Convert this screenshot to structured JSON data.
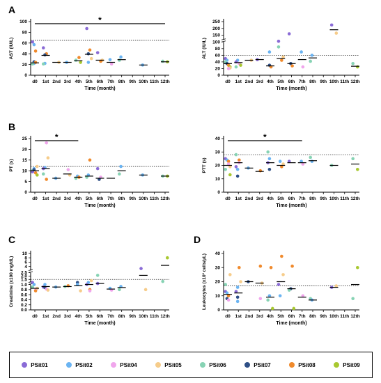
{
  "legend": [
    {
      "name": "PSit01",
      "color": "#8a6bd6"
    },
    {
      "name": "PSit02",
      "color": "#6bb4f2"
    },
    {
      "name": "PSit04",
      "color": "#f0a6ec"
    },
    {
      "name": "PSit05",
      "color": "#f6cc8a"
    },
    {
      "name": "PSit06",
      "color": "#87d3b4"
    },
    {
      "name": "PSit07",
      "color": "#2e4f86"
    },
    {
      "name": "PSit08",
      "color": "#f08a2c"
    },
    {
      "name": "PSit09",
      "color": "#a8c830"
    }
  ],
  "chart_data": [
    {
      "type": "scatter",
      "panel": "A",
      "ylabel": "AST (IU/L)",
      "xlabel": "Time (month)",
      "categories": [
        "d0",
        "1st",
        "2nd",
        "3rd",
        "4th",
        "5th",
        "6th",
        "7th",
        "8th",
        "9th",
        "10th",
        "11th",
        "12th"
      ],
      "yticks": [
        "0",
        "20",
        "40",
        "60",
        "80",
        "100"
      ],
      "ylim": [
        0,
        100
      ],
      "ref": 65,
      "sig": {
        "from": "d0",
        "to": "12th",
        "label": "*"
      },
      "medians": [
        [
          0,
          23
        ],
        [
          1,
          37
        ],
        [
          2,
          24
        ],
        [
          3,
          24
        ],
        [
          4,
          27
        ],
        [
          5,
          39
        ],
        [
          6,
          28
        ],
        [
          7,
          24
        ],
        [
          8,
          29
        ],
        [
          10,
          19
        ],
        [
          12,
          25
        ]
      ],
      "points": [
        [
          0,
          62,
          0
        ],
        [
          0,
          57,
          1
        ],
        [
          0,
          45,
          6
        ],
        [
          0,
          25,
          5
        ],
        [
          0,
          22,
          1
        ],
        [
          0,
          24,
          6
        ],
        [
          0,
          21,
          4
        ],
        [
          1,
          51,
          0
        ],
        [
          1,
          40,
          6
        ],
        [
          1,
          38,
          5
        ],
        [
          1,
          22,
          1
        ],
        [
          1,
          21,
          4
        ],
        [
          2,
          24,
          3
        ],
        [
          3,
          24,
          1
        ],
        [
          4,
          33,
          6
        ],
        [
          4,
          28,
          4
        ],
        [
          4,
          24,
          7
        ],
        [
          5,
          87,
          0
        ],
        [
          5,
          47,
          6
        ],
        [
          5,
          40,
          5
        ],
        [
          5,
          31,
          3
        ],
        [
          5,
          24,
          1
        ],
        [
          6,
          42,
          0
        ],
        [
          6,
          28,
          3
        ],
        [
          6,
          26,
          6
        ],
        [
          7,
          29,
          1
        ],
        [
          7,
          21,
          2
        ],
        [
          8,
          34,
          1
        ],
        [
          8,
          28,
          4
        ],
        [
          10,
          19,
          1
        ],
        [
          12,
          25,
          7
        ],
        [
          12,
          26,
          4
        ]
      ]
    },
    {
      "type": "scatter",
      "panel": "A",
      "ylabel": "ALT (IU/L)",
      "xlabel": "Time (month)",
      "categories": [
        "d0",
        "1st",
        "2nd",
        "3rd",
        "4th",
        "5th",
        "6th",
        "7th",
        "8th",
        "9th",
        "10th",
        "11th",
        "12th"
      ],
      "yticks": [
        "0",
        "20",
        "40",
        "60",
        "80",
        "100",
        "150",
        "200",
        "250"
      ],
      "ylim": [
        0,
        250
      ],
      "ref": 60,
      "medians": [
        [
          0,
          35
        ],
        [
          1,
          38
        ],
        [
          2,
          45
        ],
        [
          3,
          47
        ],
        [
          4,
          28
        ],
        [
          5,
          50
        ],
        [
          6,
          35
        ],
        [
          7,
          47
        ],
        [
          8,
          52
        ],
        [
          10,
          190
        ],
        [
          12,
          27
        ]
      ],
      "points": [
        [
          0,
          50,
          0
        ],
        [
          0,
          45,
          1
        ],
        [
          0,
          40,
          4
        ],
        [
          0,
          35,
          5
        ],
        [
          0,
          30,
          6
        ],
        [
          0,
          25,
          7
        ],
        [
          0,
          22,
          3
        ],
        [
          0,
          20,
          2
        ],
        [
          1,
          45,
          1
        ],
        [
          1,
          40,
          0
        ],
        [
          1,
          35,
          2
        ],
        [
          1,
          30,
          7
        ],
        [
          1,
          25,
          4
        ],
        [
          2,
          45,
          3
        ],
        [
          3,
          47,
          0
        ],
        [
          4,
          70,
          1
        ],
        [
          4,
          30,
          5
        ],
        [
          4,
          25,
          6
        ],
        [
          5,
          105,
          0
        ],
        [
          5,
          85,
          4
        ],
        [
          5,
          55,
          3
        ],
        [
          5,
          45,
          6
        ],
        [
          6,
          160,
          0
        ],
        [
          6,
          35,
          5
        ],
        [
          6,
          28,
          6
        ],
        [
          7,
          70,
          1
        ],
        [
          7,
          25,
          2
        ],
        [
          8,
          60,
          1
        ],
        [
          8,
          42,
          4
        ],
        [
          10,
          225,
          0
        ],
        [
          10,
          165,
          3
        ],
        [
          12,
          35,
          4
        ],
        [
          12,
          25,
          7
        ]
      ]
    },
    {
      "type": "scatter",
      "panel": "B",
      "ylabel": "PT (s)",
      "xlabel": "Time (month)",
      "categories": [
        "d0",
        "1st",
        "2nd",
        "3rd",
        "4th",
        "5th",
        "6th",
        "7th",
        "8th",
        "9th",
        "10th",
        "11th",
        "12th"
      ],
      "yticks": [
        "0",
        "5",
        "10",
        "15",
        "20",
        "25"
      ],
      "ylim": [
        0,
        25
      ],
      "ref": 12,
      "sig": {
        "from": "d0",
        "to": "4th",
        "label": "*"
      },
      "medians": [
        [
          0,
          10
        ],
        [
          1,
          11
        ],
        [
          2,
          6.5
        ],
        [
          3,
          8.5
        ],
        [
          4,
          7
        ],
        [
          5,
          7.5
        ],
        [
          6,
          6.5
        ],
        [
          7,
          6.5
        ],
        [
          8,
          10
        ],
        [
          10,
          8
        ],
        [
          12,
          7.5
        ]
      ],
      "points": [
        [
          0,
          12,
          3
        ],
        [
          0,
          11,
          1
        ],
        [
          0,
          10,
          4
        ],
        [
          0,
          9.5,
          0
        ],
        [
          0,
          9,
          6
        ],
        [
          0,
          8,
          7
        ],
        [
          0,
          10.5,
          5
        ],
        [
          1,
          23,
          2
        ],
        [
          1,
          16,
          3
        ],
        [
          1,
          11.5,
          1
        ],
        [
          1,
          11,
          0
        ],
        [
          1,
          8.5,
          4
        ],
        [
          1,
          6,
          6
        ],
        [
          2,
          6.5,
          1
        ],
        [
          3,
          10.5,
          2
        ],
        [
          3,
          8,
          3
        ],
        [
          4,
          7.5,
          1
        ],
        [
          4,
          7,
          6
        ],
        [
          4,
          6.5,
          4
        ],
        [
          5,
          15,
          6
        ],
        [
          5,
          8,
          1
        ],
        [
          5,
          7,
          4
        ],
        [
          6,
          11,
          0
        ],
        [
          6,
          7,
          2
        ],
        [
          6,
          6,
          5
        ],
        [
          8,
          12,
          1
        ],
        [
          8,
          8.5,
          4
        ],
        [
          10,
          8,
          1
        ],
        [
          12,
          7.5,
          4
        ],
        [
          12,
          7.5,
          7
        ]
      ]
    },
    {
      "type": "scatter",
      "panel": "B",
      "ylabel": "PTT (s)",
      "xlabel": "Time (month)",
      "categories": [
        "d0",
        "1st",
        "2nd",
        "3rd",
        "4th",
        "5th",
        "6th",
        "7th",
        "8th",
        "9th",
        "10th",
        "11th",
        "12th"
      ],
      "yticks": [
        "0",
        "10",
        "20",
        "30",
        "40"
      ],
      "ylim": [
        0,
        40
      ],
      "ref": 28,
      "sig": {
        "from": "d0",
        "to": "7th",
        "label": "*"
      },
      "medians": [
        [
          0,
          20
        ],
        [
          1,
          22
        ],
        [
          2,
          18
        ],
        [
          3,
          15.5
        ],
        [
          4,
          22
        ],
        [
          5,
          20
        ],
        [
          6,
          22
        ],
        [
          7,
          22
        ],
        [
          8,
          23.5
        ],
        [
          10,
          20
        ],
        [
          12,
          21
        ]
      ],
      "points": [
        [
          0,
          25,
          0
        ],
        [
          0,
          24,
          1
        ],
        [
          0,
          23,
          6
        ],
        [
          0,
          21,
          2
        ],
        [
          0,
          19,
          3
        ],
        [
          0,
          17,
          4
        ],
        [
          0,
          13,
          7
        ],
        [
          1,
          28,
          4
        ],
        [
          1,
          24,
          6
        ],
        [
          1,
          22,
          2
        ],
        [
          1,
          19,
          0
        ],
        [
          1,
          17,
          1
        ],
        [
          1,
          12,
          5
        ],
        [
          2,
          18,
          1
        ],
        [
          3,
          16,
          6
        ],
        [
          4,
          30,
          4
        ],
        [
          4,
          25,
          1
        ],
        [
          4,
          22,
          0
        ],
        [
          4,
          17,
          5
        ],
        [
          5,
          23,
          1
        ],
        [
          5,
          21,
          3
        ],
        [
          5,
          19,
          6
        ],
        [
          6,
          23,
          0
        ],
        [
          7,
          23,
          1
        ],
        [
          7,
          21,
          2
        ],
        [
          8,
          26,
          4
        ],
        [
          8,
          23,
          1
        ],
        [
          10,
          20,
          4
        ],
        [
          12,
          25,
          4
        ],
        [
          12,
          17,
          7
        ]
      ]
    },
    {
      "type": "scatter",
      "panel": "C",
      "ylabel": "Creatinine (x100 mg/dL)",
      "xlabel": "Time (month)",
      "categories": [
        "d0",
        "1st",
        "2nd",
        "3rd",
        "4th",
        "5th",
        "6th",
        "7th",
        "8th",
        "9th",
        "10th",
        "11th",
        "12th"
      ],
      "yticks": [
        "0.0",
        "0.2",
        "0.4",
        "0.6",
        "0.8",
        "1.0",
        "1.5",
        "2.0",
        "2.5",
        "4",
        "6",
        "8",
        "10"
      ],
      "ylim": [
        0,
        10
      ],
      "ref": 1.5,
      "medians": [
        [
          0,
          0.85
        ],
        [
          1,
          0.92
        ],
        [
          2,
          0.9
        ],
        [
          3,
          0.92
        ],
        [
          4,
          0.95
        ],
        [
          5,
          1.0
        ],
        [
          6,
          1.1
        ],
        [
          7,
          0.82
        ],
        [
          8,
          0.88
        ],
        [
          10,
          2.1
        ],
        [
          12,
          4.5
        ]
      ],
      "points": [
        [
          0,
          1.2,
          0
        ],
        [
          0,
          1.0,
          1
        ],
        [
          0,
          0.9,
          4
        ],
        [
          0,
          0.85,
          3
        ],
        [
          0,
          0.78,
          2
        ],
        [
          0,
          0.75,
          6
        ],
        [
          1,
          1.0,
          1
        ],
        [
          1,
          0.9,
          0
        ],
        [
          1,
          0.88,
          5
        ],
        [
          1,
          0.82,
          2
        ],
        [
          1,
          0.78,
          3
        ],
        [
          2,
          0.9,
          1
        ],
        [
          3,
          0.95,
          6
        ],
        [
          3,
          0.92,
          4
        ],
        [
          4,
          1.2,
          5
        ],
        [
          4,
          1.0,
          1
        ],
        [
          4,
          0.75,
          3
        ],
        [
          5,
          1.38,
          3
        ],
        [
          5,
          1.2,
          1
        ],
        [
          5,
          1.0,
          0
        ],
        [
          5,
          0.8,
          6
        ],
        [
          5,
          0.75,
          2
        ],
        [
          6,
          2.1,
          4
        ],
        [
          6,
          1.1,
          0
        ],
        [
          7,
          0.85,
          1
        ],
        [
          7,
          0.78,
          2
        ],
        [
          8,
          0.92,
          1
        ],
        [
          8,
          0.8,
          4
        ],
        [
          10,
          3.5,
          0
        ],
        [
          10,
          0.8,
          3
        ],
        [
          12,
          8,
          7
        ],
        [
          12,
          1.3,
          4
        ]
      ]
    },
    {
      "type": "scatter",
      "panel": "D",
      "ylabel": "Leukocytes (x10³ cells/μL)",
      "xlabel": "Time (month)",
      "categories": [
        "d0",
        "1st",
        "2nd",
        "3rd",
        "4th",
        "5th",
        "6th",
        "7th",
        "8th",
        "9th",
        "10th",
        "11th",
        "12th"
      ],
      "yticks": [
        "0",
        "10",
        "20",
        "30",
        "40"
      ],
      "ylim": [
        0,
        40
      ],
      "ref": 17,
      "medians": [
        [
          0,
          11
        ],
        [
          1,
          12
        ],
        [
          2,
          20
        ],
        [
          3,
          19
        ],
        [
          4,
          9
        ],
        [
          5,
          20
        ],
        [
          6,
          15
        ],
        [
          7,
          9
        ],
        [
          8,
          7
        ],
        [
          10,
          16
        ],
        [
          12,
          18
        ]
      ],
      "points": [
        [
          0,
          25,
          3
        ],
        [
          0,
          18,
          4
        ],
        [
          0,
          13,
          0
        ],
        [
          0,
          12,
          1
        ],
        [
          0,
          10,
          6
        ],
        [
          0,
          8,
          5
        ],
        [
          0,
          7,
          2
        ],
        [
          1,
          30,
          6
        ],
        [
          1,
          20,
          3
        ],
        [
          1,
          16,
          1
        ],
        [
          1,
          13,
          0
        ],
        [
          1,
          9,
          5
        ],
        [
          1,
          6,
          1
        ],
        [
          2,
          20,
          5
        ],
        [
          3,
          31,
          6
        ],
        [
          3,
          19,
          3
        ],
        [
          3,
          8,
          2
        ],
        [
          4,
          30,
          6
        ],
        [
          4,
          10,
          1
        ],
        [
          4,
          7,
          4
        ],
        [
          4,
          1,
          7
        ],
        [
          5,
          38,
          6
        ],
        [
          5,
          25,
          3
        ],
        [
          5,
          18,
          0
        ],
        [
          5,
          10,
          1
        ],
        [
          6,
          31,
          6
        ],
        [
          6,
          15,
          5
        ],
        [
          6,
          14,
          4
        ],
        [
          6,
          1,
          7
        ],
        [
          7,
          10,
          2
        ],
        [
          8,
          8,
          4
        ],
        [
          8,
          7,
          1
        ],
        [
          10,
          17,
          3
        ],
        [
          10,
          16,
          0
        ],
        [
          12,
          30,
          7
        ],
        [
          12,
          8,
          4
        ]
      ]
    }
  ]
}
